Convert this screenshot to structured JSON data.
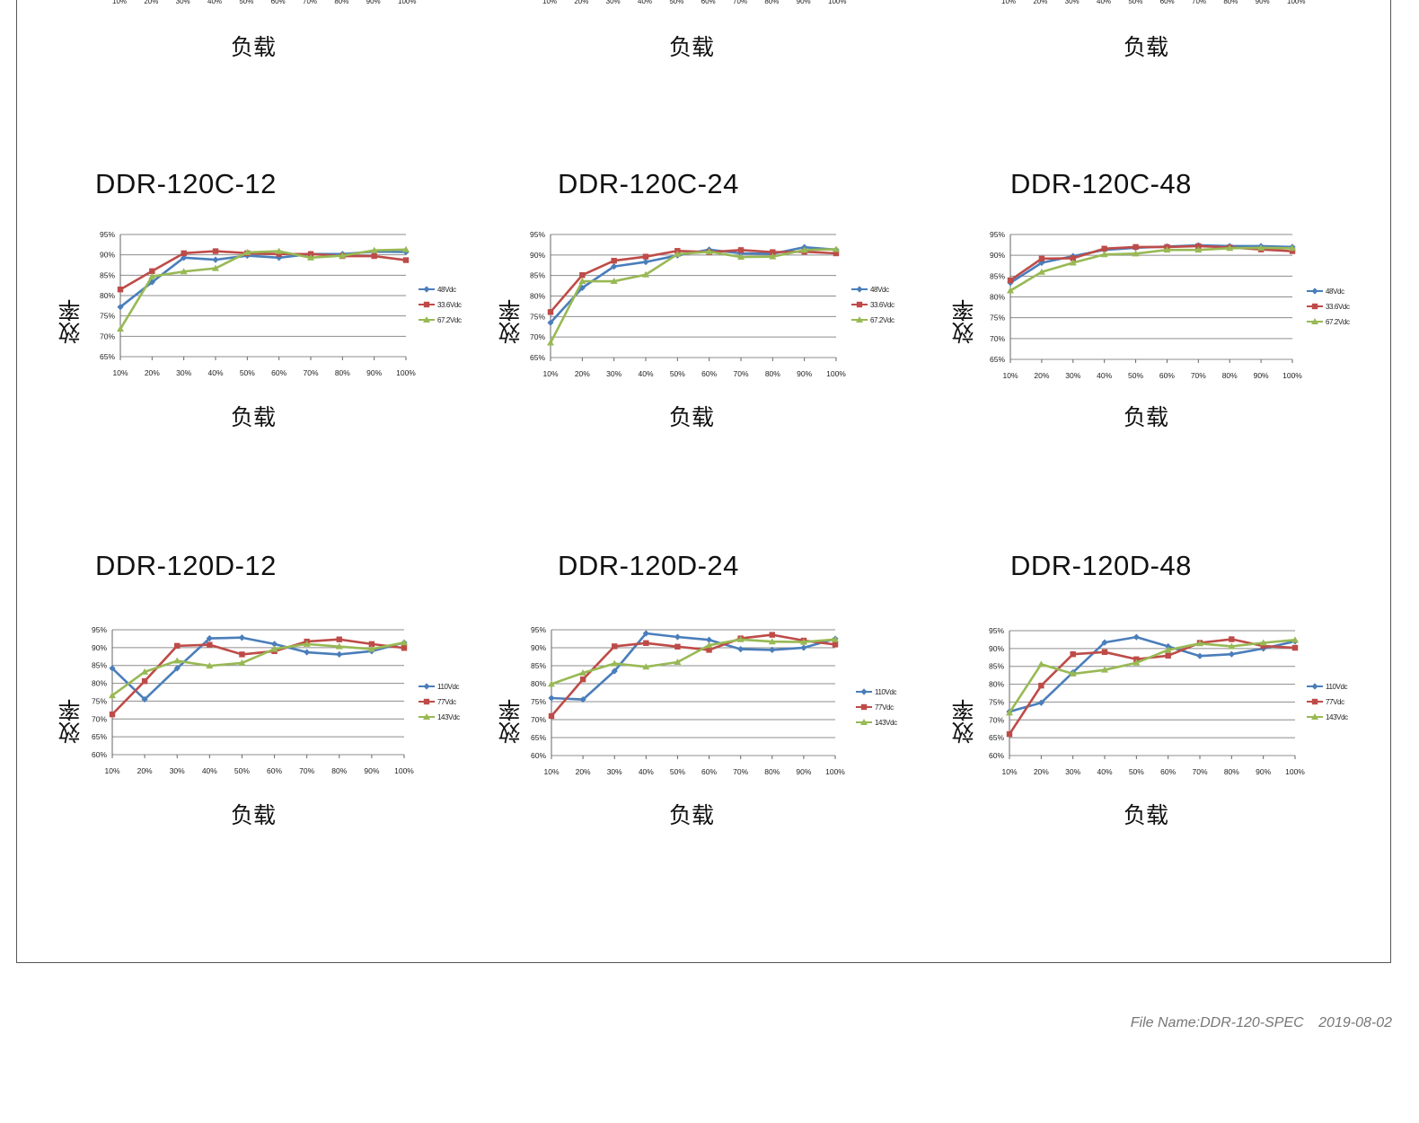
{
  "top_row": {
    "x_title": "负载",
    "ticks": [
      "10%",
      "20%",
      "30%",
      "40%",
      "50%",
      "60%",
      "70%",
      "80%",
      "90%",
      "100%"
    ]
  },
  "footer": {
    "file_name": "File Name:DDR-120-SPEC",
    "date": "2019-08-02"
  },
  "colors": {
    "series1": "#4a7ebb",
    "series2": "#be4b48",
    "series3": "#98b954",
    "grid": "#8c8c8c"
  },
  "chart_data": [
    {
      "type": "line",
      "title": "DDR-120C-12",
      "xlabel": "负载",
      "ylabel": "效率",
      "x": [
        "10%",
        "20%",
        "30%",
        "40%",
        "50%",
        "60%",
        "70%",
        "80%",
        "90%",
        "100%"
      ],
      "y_ticks": [
        "65%",
        "70%",
        "75%",
        "80%",
        "85%",
        "90%",
        "95%"
      ],
      "ylim": [
        65,
        95
      ],
      "legend": "right",
      "grid": true,
      "series": [
        {
          "name": "48Vdc",
          "marker": "diamond",
          "values": [
            77.2,
            83.3,
            89.3,
            88.8,
            89.8,
            89.3,
            90.2,
            90.2,
            90.8,
            90.7
          ]
        },
        {
          "name": "33.6Vdc",
          "marker": "square",
          "values": [
            81.5,
            86.0,
            90.4,
            90.9,
            90.4,
            90.2,
            90.2,
            89.7,
            89.7,
            88.7
          ]
        },
        {
          "name": "67.2Vdc",
          "marker": "triangle",
          "values": [
            71.8,
            84.7,
            85.9,
            86.7,
            90.6,
            90.9,
            89.3,
            89.8,
            91.1,
            91.3
          ]
        }
      ]
    },
    {
      "type": "line",
      "title": "DDR-120C-24",
      "xlabel": "负载",
      "ylabel": "效率",
      "x": [
        "10%",
        "20%",
        "30%",
        "40%",
        "50%",
        "60%",
        "70%",
        "80%",
        "90%",
        "100%"
      ],
      "y_ticks": [
        "65%",
        "70%",
        "75%",
        "80%",
        "85%",
        "90%",
        "95%"
      ],
      "ylim": [
        65,
        95
      ],
      "legend": "right",
      "grid": true,
      "series": [
        {
          "name": "48Vdc",
          "marker": "diamond",
          "values": [
            73.5,
            82.0,
            87.2,
            88.3,
            89.9,
            91.3,
            90.4,
            90.3,
            91.9,
            91.3
          ]
        },
        {
          "name": "33.6Vdc",
          "marker": "square",
          "values": [
            76.1,
            85.1,
            88.6,
            89.6,
            91.0,
            90.7,
            91.2,
            90.7,
            90.8,
            90.4
          ]
        },
        {
          "name": "67.2Vdc",
          "marker": "triangle",
          "values": [
            68.6,
            83.6,
            83.6,
            85.2,
            90.2,
            90.8,
            89.5,
            89.6,
            91.2,
            91.4
          ]
        }
      ]
    },
    {
      "type": "line",
      "title": "DDR-120C-48",
      "xlabel": "负载",
      "ylabel": "效率",
      "x": [
        "10%",
        "20%",
        "30%",
        "40%",
        "50%",
        "60%",
        "70%",
        "80%",
        "90%",
        "100%"
      ],
      "y_ticks": [
        "65%",
        "70%",
        "75%",
        "80%",
        "85%",
        "90%",
        "95%"
      ],
      "ylim": [
        65,
        95
      ],
      "legend": "right",
      "grid": true,
      "series": [
        {
          "name": "48Vdc",
          "marker": "diamond",
          "values": [
            83.4,
            88.2,
            89.8,
            91.3,
            91.8,
            92.1,
            92.4,
            92.2,
            92.2,
            92.0
          ]
        },
        {
          "name": "33.6Vdc",
          "marker": "square",
          "values": [
            84.0,
            89.2,
            89.3,
            91.6,
            92.0,
            92.0,
            92.2,
            91.9,
            91.4,
            91.0
          ]
        },
        {
          "name": "67.2Vdc",
          "marker": "triangle",
          "values": [
            81.5,
            86.0,
            88.2,
            90.2,
            90.4,
            91.3,
            91.3,
            91.7,
            91.8,
            91.7
          ]
        }
      ]
    },
    {
      "type": "line",
      "title": "DDR-120D-12",
      "xlabel": "负载",
      "ylabel": "效率",
      "x": [
        "10%",
        "20%",
        "30%",
        "40%",
        "50%",
        "60%",
        "70%",
        "80%",
        "90%",
        "100%"
      ],
      "y_ticks": [
        "60%",
        "65%",
        "70%",
        "75%",
        "80%",
        "85%",
        "90%",
        "95%"
      ],
      "ylim": [
        60,
        95
      ],
      "legend": "right",
      "grid": true,
      "series": [
        {
          "name": "110Vdc",
          "marker": "diamond",
          "values": [
            84.2,
            75.5,
            84.2,
            92.6,
            92.8,
            91.0,
            88.7,
            88.1,
            89.0,
            91.4
          ]
        },
        {
          "name": "77Vdc",
          "marker": "square",
          "values": [
            71.3,
            80.6,
            90.5,
            90.8,
            88.1,
            89.0,
            91.7,
            92.3,
            91.0,
            89.9
          ]
        },
        {
          "name": "143Vdc",
          "marker": "triangle",
          "values": [
            76.6,
            83.2,
            86.3,
            84.9,
            85.7,
            89.6,
            91.0,
            90.3,
            89.6,
            91.4
          ]
        }
      ]
    },
    {
      "type": "line",
      "title": "DDR-120D-24",
      "xlabel": "负载",
      "ylabel": "效率",
      "x": [
        "10%",
        "20%",
        "30%",
        "40%",
        "50%",
        "60%",
        "70%",
        "80%",
        "90%",
        "100%"
      ],
      "y_ticks": [
        "60%",
        "65%",
        "70%",
        "75%",
        "80%",
        "85%",
        "90%",
        "95%"
      ],
      "ylim": [
        60,
        95
      ],
      "legend": "right",
      "grid": true,
      "series": [
        {
          "name": "110Vdc",
          "marker": "diamond",
          "values": [
            76.0,
            75.6,
            83.5,
            94.0,
            93.0,
            92.2,
            89.6,
            89.4,
            90.0,
            92.5
          ]
        },
        {
          "name": "77Vdc",
          "marker": "square",
          "values": [
            71.0,
            81.2,
            90.4,
            91.3,
            90.3,
            89.4,
            92.6,
            93.6,
            92.0,
            90.9
          ]
        },
        {
          "name": "143Vdc",
          "marker": "triangle",
          "values": [
            79.9,
            83.0,
            85.6,
            84.7,
            86.0,
            90.7,
            92.3,
            91.7,
            91.6,
            92.3
          ]
        }
      ]
    },
    {
      "type": "line",
      "title": "DDR-120D-48",
      "xlabel": "负载",
      "ylabel": "效率",
      "x": [
        "10%",
        "20%",
        "30%",
        "40%",
        "50%",
        "60%",
        "70%",
        "80%",
        "90%",
        "100%"
      ],
      "y_ticks": [
        "60%",
        "65%",
        "70%",
        "75%",
        "80%",
        "85%",
        "90%",
        "95%"
      ],
      "ylim": [
        60,
        95
      ],
      "legend": "right",
      "grid": true,
      "series": [
        {
          "name": "110Vdc",
          "marker": "diamond",
          "values": [
            72.3,
            74.8,
            83.3,
            91.7,
            93.2,
            90.6,
            87.9,
            88.4,
            90.0,
            92.0
          ]
        },
        {
          "name": "77Vdc",
          "marker": "square",
          "values": [
            66.0,
            79.6,
            88.4,
            89.0,
            87.0,
            88.0,
            91.6,
            92.6,
            90.7,
            90.2
          ]
        },
        {
          "name": "143Vdc",
          "marker": "triangle",
          "values": [
            72.0,
            85.6,
            82.9,
            84.0,
            86.0,
            89.6,
            91.4,
            90.6,
            91.6,
            92.4
          ]
        }
      ]
    }
  ]
}
